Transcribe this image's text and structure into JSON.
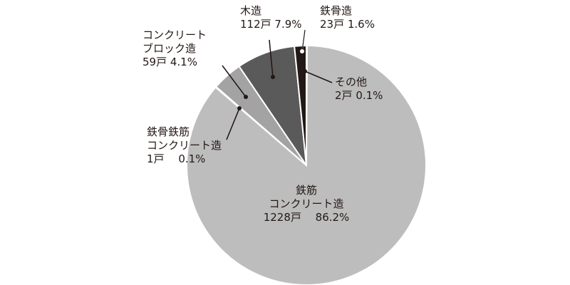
{
  "chart_data": {
    "type": "pie",
    "categories": [
      "その他",
      "鉄筋\nコンクリート造",
      "鉄骨鉄筋\nコンクリート造",
      "コンクリート\nブロック造",
      "木造",
      "鉄骨造"
    ],
    "counts": [
      2,
      1228,
      1,
      59,
      112,
      23
    ],
    "count_labels": [
      "2戸",
      "1228戸",
      "1戸",
      "59戸",
      "112戸",
      "23戸"
    ],
    "values": [
      0.1,
      86.2,
      0.1,
      4.1,
      7.9,
      1.6
    ],
    "value_labels": [
      "0.1%",
      "86.2%",
      "0.1%",
      "4.1%",
      "7.9%",
      "1.6%"
    ],
    "colors": [
      "#c4c4c4",
      "#bdbdbd",
      "#bdbdbd",
      "#a3a3a3",
      "#5a5a5a",
      "#231815"
    ]
  }
}
